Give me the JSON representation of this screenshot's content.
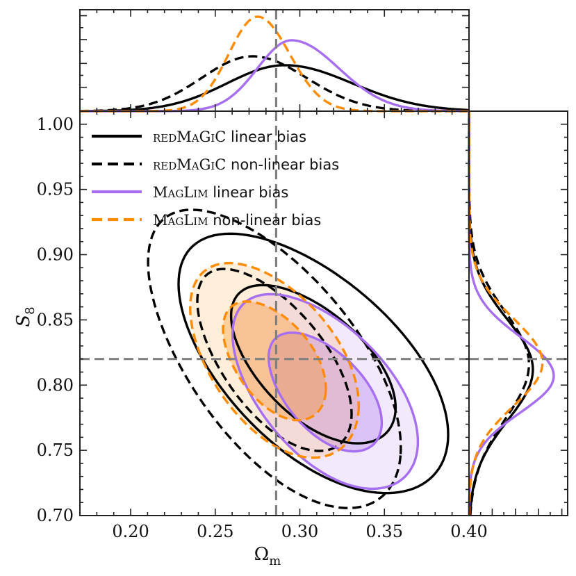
{
  "chart_data": {
    "type": "contour-corner",
    "xlabel": "Ω",
    "xlabel_sub": "m",
    "ylabel": "S",
    "ylabel_sub": "8",
    "xlim": [
      0.17,
      0.4
    ],
    "ylim": [
      0.7,
      1.01
    ],
    "x_ticks": [
      0.2,
      0.25,
      0.3,
      0.35,
      0.4
    ],
    "x_tick_labels": [
      "0.20",
      "0.25",
      "0.30",
      "0.35",
      "0.40"
    ],
    "y_ticks": [
      0.7,
      0.75,
      0.8,
      0.85,
      0.9,
      0.95,
      1.0
    ],
    "y_tick_labels": [
      "0.70",
      "0.75",
      "0.80",
      "0.85",
      "0.90",
      "0.95",
      "1.00"
    ],
    "fiducial": {
      "omega_m": 0.286,
      "s8": 0.82
    },
    "legend_position": "top-left",
    "colors": {
      "black": "#000000",
      "purple": "#a66ef0",
      "orange": "#ff8c00",
      "fiducial": "#808080"
    },
    "series": [
      {
        "key": "rm_lin",
        "name_sc": "redMaGiC",
        "name_rest": " linear bias",
        "color": "#000000",
        "dash": "solid",
        "filled": false,
        "center": [
          0.308,
          0.815
        ],
        "sx": 0.032,
        "sy": 0.04,
        "rho": -0.58,
        "marg_x": {
          "peak": 0.291,
          "sigL": 0.034,
          "sigR": 0.04
        },
        "marg_y": {
          "peak": 0.812,
          "sigL": 0.039,
          "sigR": 0.038
        }
      },
      {
        "key": "rm_nl",
        "name_sc": "redMaGiC",
        "name_rest": " non-linear bias",
        "color": "#000000",
        "dash": "dashed",
        "filled": false,
        "center": [
          0.285,
          0.818
        ],
        "sx": 0.03,
        "sy": 0.046,
        "rho": -0.62,
        "marg_x": {
          "peak": 0.272,
          "sigL": 0.03,
          "sigR": 0.032
        },
        "marg_y": {
          "peak": 0.816,
          "sigL": 0.042,
          "sigR": 0.04
        }
      },
      {
        "key": "ml_lin",
        "name_sc": "MagLim",
        "name_rest": " linear bias",
        "color": "#a66ef0",
        "dash": "solid",
        "filled": true,
        "center": [
          0.315,
          0.794
        ],
        "sx": 0.022,
        "sy": 0.03,
        "rho": -0.55,
        "marg_x": {
          "peak": 0.295,
          "sigL": 0.02,
          "sigR": 0.028
        },
        "marg_y": {
          "peak": 0.807,
          "sigL": 0.028,
          "sigR": 0.03
        }
      },
      {
        "key": "ml_nl",
        "name_sc": "MagLim",
        "name_rest": " non-linear bias",
        "color": "#ff8c00",
        "dash": "dashed",
        "filled": true,
        "center": [
          0.285,
          0.818
        ],
        "sx": 0.02,
        "sy": 0.03,
        "rho": -0.5,
        "marg_x": {
          "peak": 0.275,
          "sigL": 0.017,
          "sigR": 0.019
        },
        "marg_y": {
          "peak": 0.817,
          "sigL": 0.033,
          "sigR": 0.034
        }
      }
    ]
  }
}
